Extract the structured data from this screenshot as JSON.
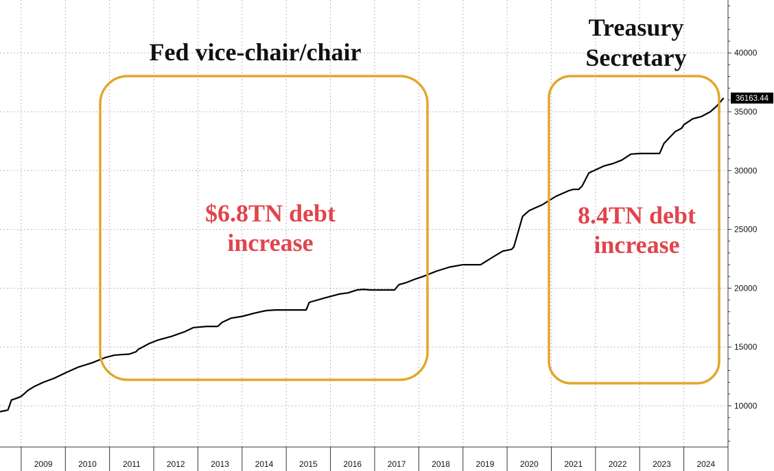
{
  "chart_data": {
    "type": "line",
    "title": "",
    "xlabel": "",
    "ylabel": "",
    "grid": true,
    "legend": "none",
    "ylim": [
      6500,
      44500
    ],
    "xlim": [
      2008.52,
      2025.0
    ],
    "y_ticks": [
      10000,
      15000,
      20000,
      25000,
      30000,
      35000,
      40000
    ],
    "y_tick_labels": [
      "10000",
      "15000",
      "20000",
      "25000",
      "30000",
      "35000",
      "40000"
    ],
    "x_tick_labels": [
      "2009",
      "2010",
      "2011",
      "2012",
      "2013",
      "2014",
      "2015",
      "2016",
      "2017",
      "2018",
      "2019",
      "2020",
      "2021",
      "2022",
      "2023",
      "2024"
    ],
    "last_value_label": "36163.44",
    "line_color": "#000000",
    "series": [
      {
        "x": [
          2008.52,
          2008.7,
          2008.78,
          2008.9,
          2009.0,
          2009.15,
          2009.3,
          2009.5,
          2009.75,
          2010.0,
          2010.3,
          2010.6,
          2010.9,
          2011.1,
          2011.25,
          2011.45,
          2011.6,
          2011.65,
          2011.9,
          2012.1,
          2012.4,
          2012.7,
          2012.9,
          2013.2,
          2013.45,
          2013.55,
          2013.75,
          2014.0,
          2014.3,
          2014.55,
          2014.75,
          2015.0,
          2015.3,
          2015.45,
          2015.52,
          2015.9,
          2016.2,
          2016.4,
          2016.6,
          2016.75,
          2016.9,
          2017.2,
          2017.45,
          2017.55,
          2017.7,
          2017.9,
          2018.1,
          2018.4,
          2018.7,
          2019.0,
          2019.2,
          2019.4,
          2019.7,
          2019.9,
          2020.1,
          2020.15,
          2020.25,
          2020.35,
          2020.5,
          2020.8,
          2021.1,
          2021.4,
          2021.5,
          2021.62,
          2021.7,
          2021.85,
          2022.2,
          2022.4,
          2022.6,
          2022.8,
          2023.0,
          2023.2,
          2023.45,
          2023.55,
          2023.8,
          2023.95,
          2024.0,
          2024.2,
          2024.4,
          2024.6,
          2024.75,
          2024.9
        ],
        "y": [
          9500,
          9650,
          10500,
          10650,
          10800,
          11300,
          11650,
          12000,
          12350,
          12800,
          13300,
          13650,
          14100,
          14300,
          14350,
          14400,
          14600,
          14800,
          15300,
          15600,
          15900,
          16300,
          16650,
          16750,
          16750,
          17100,
          17450,
          17600,
          17900,
          18100,
          18150,
          18150,
          18150,
          18150,
          18800,
          19200,
          19500,
          19600,
          19850,
          19900,
          19850,
          19850,
          19850,
          20300,
          20450,
          20750,
          21000,
          21450,
          21800,
          22000,
          22000,
          22000,
          22700,
          23150,
          23300,
          23500,
          24800,
          26100,
          26600,
          27100,
          27800,
          28300,
          28400,
          28400,
          28700,
          29800,
          30400,
          30600,
          30900,
          31400,
          31450,
          31450,
          31450,
          32300,
          33300,
          33600,
          33900,
          34400,
          34600,
          35000,
          35500,
          36163.44
        ]
      }
    ],
    "annotations": [
      {
        "title": "Fed vice-chair/chair",
        "text_line1": "$6.8TN debt",
        "text_line2": "increase"
      },
      {
        "title_line1": "Treasury",
        "title_line2": "Secretary",
        "text_line1": "8.4TN debt",
        "text_line2": "increase"
      }
    ],
    "colors": {
      "box": "#e3a62b",
      "annotation_text": "#e0454c",
      "grid": "#b8b8b8",
      "last_value_bg": "#000000"
    }
  }
}
